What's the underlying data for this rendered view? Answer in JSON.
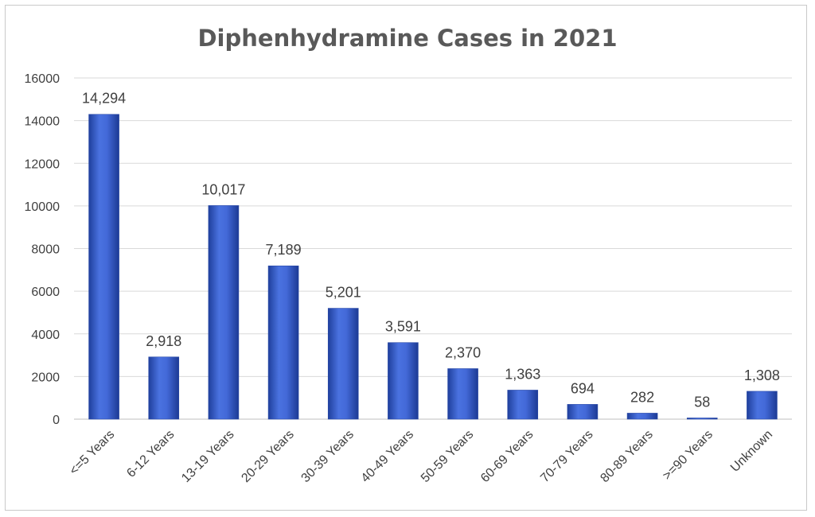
{
  "chart_data": {
    "type": "bar",
    "title": "Diphenhydramine Cases in 2021",
    "xlabel": "",
    "ylabel": "",
    "categories": [
      "<=5 Years",
      "6-12 Years",
      "13-19 Years",
      "20-29 Years",
      "30-39 Years",
      "40-49 Years",
      "50-59 Years",
      "60-69 Years",
      "70-79 Years",
      "80-89 Years",
      ">=90 Years",
      "Unknown"
    ],
    "values": [
      14294,
      2918,
      10017,
      7189,
      5201,
      3591,
      2370,
      1363,
      694,
      282,
      58,
      1308
    ],
    "data_labels": [
      "14,294",
      "2,918",
      "10,017",
      "7,189",
      "5,201",
      "3,591",
      "2,370",
      "1,363",
      "694",
      "282",
      "58",
      "1,308"
    ],
    "ylim": [
      0,
      16000
    ],
    "yticks": [
      0,
      2000,
      4000,
      6000,
      8000,
      10000,
      12000,
      14000,
      16000
    ],
    "grid": true,
    "legend": "none",
    "bar_color": "#3a5fcd"
  }
}
